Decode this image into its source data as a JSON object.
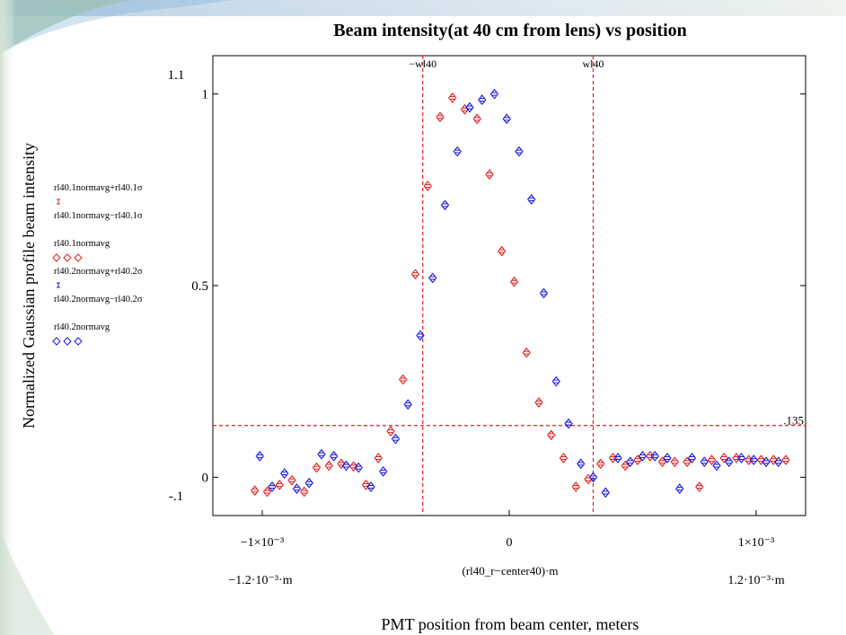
{
  "chart_data": {
    "type": "scatter",
    "title": "Beam intensity(at 40 cm from lens) vs position",
    "ylabel": "Normalized Gaussian profile beam intensity",
    "xlabel": "PMT position from beam center, meters",
    "x_expr_label": "(rl40_r−center40)·m",
    "x_min_label": "−1.2·10⁻³·m",
    "x_max_label": "1.2·10⁻³·m",
    "y_top_label": "1.1",
    "y_bottom_label": "-.1",
    "xlim": [
      -0.0012,
      0.0012
    ],
    "ylim": [
      -0.1,
      1.1
    ],
    "x_ticks": [
      {
        "value": -0.001,
        "label": "−1×10⁻³"
      },
      {
        "value": 0,
        "label": "0"
      },
      {
        "value": 0.001,
        "label": "1×10⁻³"
      }
    ],
    "y_ticks": [
      {
        "value": 0,
        "label": "0"
      },
      {
        "value": 0.5,
        "label": "0.5"
      },
      {
        "value": 1,
        "label": "1"
      }
    ],
    "markers": [
      {
        "axis": "x",
        "value": -0.00035,
        "label": "−wl40",
        "color": "#e02020"
      },
      {
        "axis": "x",
        "value": 0.00034,
        "label": "wl40",
        "color": "#e02020"
      },
      {
        "axis": "y",
        "value": 0.135,
        "label": ".135",
        "color": "#e02020"
      }
    ],
    "legend_entries": [
      {
        "text": "rl40.1normavg+rl40.1σ",
        "symbol": "errbar",
        "color": "#e02020"
      },
      {
        "text": "rl40.1normavg−rl40.1σ",
        "symbol": "none",
        "color": "#e02020"
      },
      {
        "text": "rl40.1normavg",
        "symbol": "diamonds",
        "color": "#e02020"
      },
      {
        "text": "rl40.2normavg+rl40.2σ",
        "symbol": "errbar",
        "color": "#1818e0"
      },
      {
        "text": "rl40.2normavg−rl40.2σ",
        "symbol": "none",
        "color": "#1818e0"
      },
      {
        "text": "rl40.2normavg",
        "symbol": "diamonds",
        "color": "#1818e0"
      }
    ],
    "series": [
      {
        "name": "rl40.1normavg",
        "color": "#e02020",
        "x": [
          -0.00103,
          -0.00098,
          -0.00093,
          -0.00088,
          -0.00083,
          -0.00078,
          -0.00073,
          -0.00068,
          -0.00063,
          -0.00058,
          -0.00053,
          -0.00048,
          -0.00043,
          -0.00038,
          -0.00033,
          -0.00028,
          -0.00023,
          -0.00018,
          -0.00013,
          -8e-05,
          -3e-05,
          2e-05,
          7e-05,
          0.00012,
          0.00017,
          0.00022,
          0.00027,
          0.00032,
          0.00037,
          0.00042,
          0.00047,
          0.00052,
          0.00057,
          0.00062,
          0.00067,
          0.00072,
          0.00077,
          0.00082,
          0.00087,
          0.00092,
          0.00097,
          0.00102,
          0.00107,
          0.00112
        ],
        "y": [
          -0.035,
          -0.038,
          -0.02,
          -0.008,
          -0.038,
          0.025,
          0.03,
          0.035,
          0.028,
          -0.02,
          0.05,
          0.12,
          0.255,
          0.53,
          0.76,
          0.94,
          0.99,
          0.96,
          0.935,
          0.79,
          0.59,
          0.51,
          0.325,
          0.195,
          0.11,
          0.05,
          -0.025,
          -0.005,
          0.035,
          0.05,
          0.03,
          0.045,
          0.055,
          0.04,
          0.04,
          0.04,
          -0.025,
          0.045,
          0.05,
          0.05,
          0.045,
          0.045,
          0.045,
          0.045
        ]
      },
      {
        "name": "rl40.2normavg",
        "color": "#1818e0",
        "x": [
          -0.00101,
          -0.00096,
          -0.00091,
          -0.00086,
          -0.00081,
          -0.00076,
          -0.00071,
          -0.00066,
          -0.00061,
          -0.00056,
          -0.00051,
          -0.00046,
          -0.00041,
          -0.00036,
          -0.00031,
          -0.00026,
          -0.00021,
          -0.00016,
          -0.00011,
          -6e-05,
          -1e-05,
          4e-05,
          9e-05,
          0.00014,
          0.00019,
          0.00024,
          0.00029,
          0.00034,
          0.00039,
          0.00044,
          0.00049,
          0.00054,
          0.00059,
          0.00064,
          0.00069,
          0.00074,
          0.00079,
          0.00084,
          0.00089,
          0.00094,
          0.00099,
          0.00104,
          0.00109
        ],
        "y": [
          0.055,
          -0.025,
          0.01,
          -0.03,
          -0.015,
          0.06,
          0.055,
          0.03,
          0.025,
          -0.025,
          0.015,
          0.1,
          0.19,
          0.37,
          0.52,
          0.71,
          0.85,
          0.965,
          0.985,
          1.0,
          0.935,
          0.85,
          0.725,
          0.48,
          0.25,
          0.14,
          0.035,
          0.0,
          -0.04,
          0.05,
          0.04,
          0.055,
          0.055,
          0.05,
          -0.03,
          0.05,
          0.04,
          0.03,
          0.04,
          0.05,
          0.045,
          0.04,
          0.04
        ]
      }
    ]
  }
}
